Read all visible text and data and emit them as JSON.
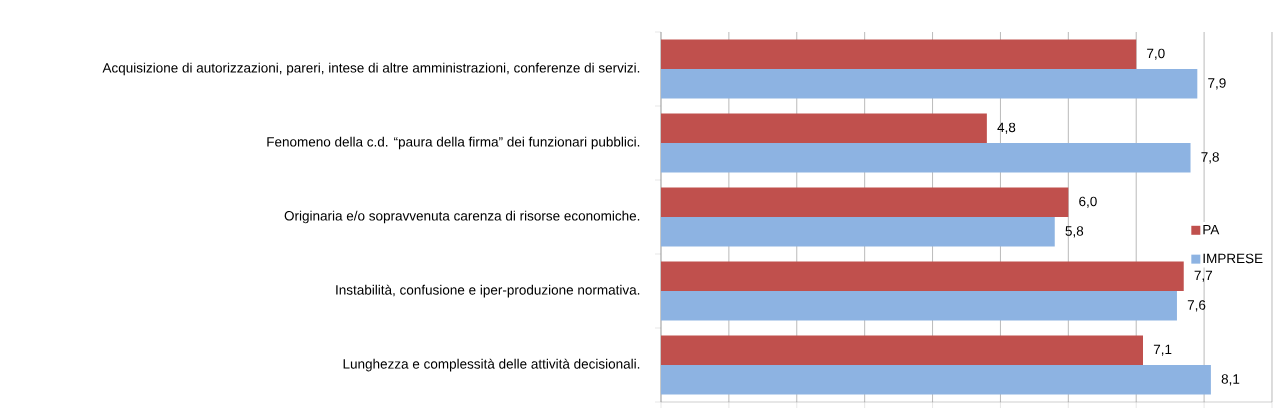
{
  "chart_data": {
    "type": "bar",
    "orientation": "horizontal",
    "categories": [
      "Acquisizione di autorizzazioni, pareri, intese di altre amministrazioni, conferenze di servizi.",
      "Fenomeno della c.d. “paura della firma” dei funzionari pubblici.",
      "Originaria e/o sopravvenuta carenza di risorse economiche.",
      "Instabilità, confusione e iper-produzione normativa.",
      "Lunghezza e complessità delle attività decisionali."
    ],
    "series": [
      {
        "name": "PA",
        "color": "#c0504d",
        "values": [
          7.0,
          4.8,
          6.0,
          7.7,
          7.1
        ],
        "value_labels": [
          "7,0",
          "4,8",
          "6,0",
          "7,7",
          "7,1"
        ]
      },
      {
        "name": "IMPRESE",
        "color": "#8db3e2",
        "values": [
          7.9,
          7.8,
          5.8,
          7.6,
          8.1
        ],
        "value_labels": [
          "7,9",
          "7,8",
          "5,8",
          "7,6",
          "8,1"
        ]
      }
    ],
    "xlim": [
      0,
      9
    ],
    "xticks": [
      {
        "value": 0,
        "label": null
      },
      {
        "value": 1,
        "label": null
      },
      {
        "value": 2,
        "label": null
      },
      {
        "value": 3,
        "label": null
      },
      {
        "value": 4,
        "label": null
      },
      {
        "value": 5,
        "label": null
      },
      {
        "value": 6,
        "label": null
      },
      {
        "value": 7,
        "label": null
      },
      {
        "value": 8,
        "label": null
      },
      {
        "value": 9,
        "label": null
      }
    ],
    "tick_labels": "y",
    "grid": "x",
    "legend": "right"
  }
}
